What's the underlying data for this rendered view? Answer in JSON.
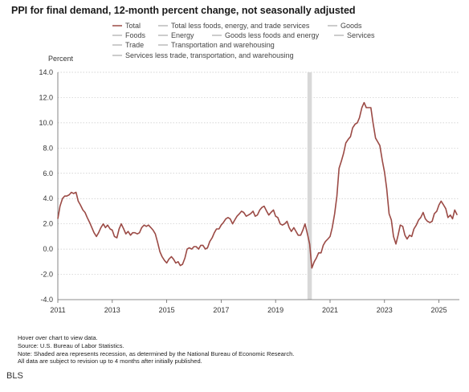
{
  "chart_data": {
    "type": "line",
    "title": "PPI for final demand, 12-month percent change, not seasonally adjusted",
    "ylabel": "Percent",
    "xlabel": "",
    "ylim": [
      -4.0,
      14.0
    ],
    "y_ticks": [
      "14.0",
      "12.0",
      "10.0",
      "8.0",
      "6.0",
      "4.0",
      "2.0",
      "0.0",
      "-2.0",
      "-4.0"
    ],
    "y_tick_values": [
      14,
      12,
      10,
      8,
      6,
      4,
      2,
      0,
      -2,
      -4
    ],
    "x_ticks": [
      "2011",
      "2013",
      "2015",
      "2017",
      "2019",
      "2021",
      "2023",
      "2025"
    ],
    "x_tick_values": [
      2011,
      2013,
      2015,
      2017,
      2019,
      2021,
      2023,
      2025
    ],
    "x_range": [
      2011.0,
      2025.75
    ],
    "grid": "horizontal dotted",
    "legend_position": "top",
    "legend": [
      {
        "label": "Total",
        "color": "#9b4a45",
        "active": true
      },
      {
        "label": "Total less foods, energy, and trade services",
        "color": "#bbbbbb",
        "active": false
      },
      {
        "label": "Goods",
        "color": "#bbbbbb",
        "active": false
      },
      {
        "label": "Foods",
        "color": "#bbbbbb",
        "active": false
      },
      {
        "label": "Energy",
        "color": "#bbbbbb",
        "active": false
      },
      {
        "label": "Goods less foods and energy",
        "color": "#bbbbbb",
        "active": false
      },
      {
        "label": "Services",
        "color": "#bbbbbb",
        "active": false
      },
      {
        "label": "Trade",
        "color": "#bbbbbb",
        "active": false
      },
      {
        "label": "Transportation and warehousing",
        "color": "#bbbbbb",
        "active": false
      },
      {
        "label": "Services less trade, transportation, and warehousing",
        "color": "#bbbbbb",
        "active": false
      }
    ],
    "recession": {
      "start": 2020.17,
      "end": 2020.33,
      "color": "#d8d8d8"
    },
    "series": [
      {
        "name": "Total",
        "color": "#9b4a45",
        "points": [
          [
            2011.0,
            2.4
          ],
          [
            2011.08,
            3.4
          ],
          [
            2011.17,
            4.0
          ],
          [
            2011.25,
            4.2
          ],
          [
            2011.33,
            4.2
          ],
          [
            2011.42,
            4.3
          ],
          [
            2011.5,
            4.5
          ],
          [
            2011.58,
            4.4
          ],
          [
            2011.67,
            4.5
          ],
          [
            2011.75,
            3.8
          ],
          [
            2011.83,
            3.5
          ],
          [
            2011.92,
            3.1
          ],
          [
            2012.0,
            2.9
          ],
          [
            2012.08,
            2.5
          ],
          [
            2012.17,
            2.1
          ],
          [
            2012.25,
            1.7
          ],
          [
            2012.33,
            1.3
          ],
          [
            2012.42,
            1.0
          ],
          [
            2012.5,
            1.3
          ],
          [
            2012.58,
            1.7
          ],
          [
            2012.67,
            2.0
          ],
          [
            2012.75,
            1.7
          ],
          [
            2012.83,
            1.9
          ],
          [
            2012.92,
            1.6
          ],
          [
            2013.0,
            1.5
          ],
          [
            2013.08,
            1.0
          ],
          [
            2013.17,
            0.9
          ],
          [
            2013.25,
            1.6
          ],
          [
            2013.33,
            2.0
          ],
          [
            2013.42,
            1.6
          ],
          [
            2013.5,
            1.2
          ],
          [
            2013.58,
            1.4
          ],
          [
            2013.67,
            1.1
          ],
          [
            2013.75,
            1.3
          ],
          [
            2013.83,
            1.3
          ],
          [
            2013.92,
            1.2
          ],
          [
            2014.0,
            1.3
          ],
          [
            2014.08,
            1.7
          ],
          [
            2014.17,
            1.9
          ],
          [
            2014.25,
            1.8
          ],
          [
            2014.33,
            1.9
          ],
          [
            2014.42,
            1.7
          ],
          [
            2014.5,
            1.5
          ],
          [
            2014.58,
            1.2
          ],
          [
            2014.67,
            0.5
          ],
          [
            2014.75,
            -0.2
          ],
          [
            2014.83,
            -0.6
          ],
          [
            2014.92,
            -0.9
          ],
          [
            2015.0,
            -1.1
          ],
          [
            2015.08,
            -0.8
          ],
          [
            2015.17,
            -0.6
          ],
          [
            2015.25,
            -0.8
          ],
          [
            2015.33,
            -1.1
          ],
          [
            2015.42,
            -1.0
          ],
          [
            2015.5,
            -1.3
          ],
          [
            2015.58,
            -1.2
          ],
          [
            2015.67,
            -0.7
          ],
          [
            2015.75,
            0.0
          ],
          [
            2015.83,
            0.1
          ],
          [
            2015.92,
            0.0
          ],
          [
            2016.0,
            0.2
          ],
          [
            2016.08,
            0.2
          ],
          [
            2016.17,
            0.0
          ],
          [
            2016.25,
            0.3
          ],
          [
            2016.33,
            0.3
          ],
          [
            2016.42,
            0.0
          ],
          [
            2016.5,
            0.1
          ],
          [
            2016.58,
            0.6
          ],
          [
            2016.67,
            0.9
          ],
          [
            2016.75,
            1.3
          ],
          [
            2016.83,
            1.6
          ],
          [
            2016.92,
            1.6
          ],
          [
            2017.0,
            1.9
          ],
          [
            2017.08,
            2.1
          ],
          [
            2017.17,
            2.4
          ],
          [
            2017.25,
            2.5
          ],
          [
            2017.33,
            2.4
          ],
          [
            2017.42,
            2.0
          ],
          [
            2017.5,
            2.3
          ],
          [
            2017.58,
            2.6
          ],
          [
            2017.67,
            2.8
          ],
          [
            2017.75,
            3.0
          ],
          [
            2017.83,
            2.9
          ],
          [
            2017.92,
            2.6
          ],
          [
            2018.0,
            2.7
          ],
          [
            2018.08,
            2.8
          ],
          [
            2018.17,
            3.0
          ],
          [
            2018.25,
            2.6
          ],
          [
            2018.33,
            2.7
          ],
          [
            2018.42,
            3.1
          ],
          [
            2018.5,
            3.3
          ],
          [
            2018.58,
            3.4
          ],
          [
            2018.67,
            3.0
          ],
          [
            2018.75,
            2.7
          ],
          [
            2018.83,
            2.9
          ],
          [
            2018.92,
            3.1
          ],
          [
            2019.0,
            2.6
          ],
          [
            2019.08,
            2.5
          ],
          [
            2019.17,
            2.0
          ],
          [
            2019.25,
            1.9
          ],
          [
            2019.33,
            2.0
          ],
          [
            2019.42,
            2.2
          ],
          [
            2019.5,
            1.7
          ],
          [
            2019.58,
            1.4
          ],
          [
            2019.67,
            1.7
          ],
          [
            2019.75,
            1.4
          ],
          [
            2019.83,
            1.1
          ],
          [
            2019.92,
            1.1
          ],
          [
            2020.0,
            1.5
          ],
          [
            2020.08,
            2.0
          ],
          [
            2020.17,
            1.2
          ],
          [
            2020.25,
            0.4
          ],
          [
            2020.33,
            -1.5
          ],
          [
            2020.42,
            -1.0
          ],
          [
            2020.5,
            -0.7
          ],
          [
            2020.58,
            -0.3
          ],
          [
            2020.67,
            -0.3
          ],
          [
            2020.75,
            0.3
          ],
          [
            2020.83,
            0.6
          ],
          [
            2020.92,
            0.8
          ],
          [
            2021.0,
            1.0
          ],
          [
            2021.08,
            1.7
          ],
          [
            2021.17,
            2.8
          ],
          [
            2021.25,
            4.2
          ],
          [
            2021.33,
            6.4
          ],
          [
            2021.42,
            7.0
          ],
          [
            2021.5,
            7.6
          ],
          [
            2021.58,
            8.4
          ],
          [
            2021.67,
            8.7
          ],
          [
            2021.75,
            8.9
          ],
          [
            2021.83,
            9.6
          ],
          [
            2021.92,
            9.9
          ],
          [
            2022.0,
            10.0
          ],
          [
            2022.08,
            10.4
          ],
          [
            2022.17,
            11.2
          ],
          [
            2022.25,
            11.6
          ],
          [
            2022.33,
            11.2
          ],
          [
            2022.42,
            11.2
          ],
          [
            2022.5,
            11.2
          ],
          [
            2022.58,
            10.0
          ],
          [
            2022.67,
            8.8
          ],
          [
            2022.75,
            8.5
          ],
          [
            2022.83,
            8.2
          ],
          [
            2022.92,
            7.0
          ],
          [
            2023.0,
            6.1
          ],
          [
            2023.08,
            4.8
          ],
          [
            2023.17,
            2.8
          ],
          [
            2023.25,
            2.3
          ],
          [
            2023.33,
            1.0
          ],
          [
            2023.42,
            0.4
          ],
          [
            2023.5,
            1.1
          ],
          [
            2023.58,
            1.9
          ],
          [
            2023.67,
            1.8
          ],
          [
            2023.75,
            1.1
          ],
          [
            2023.83,
            0.8
          ],
          [
            2023.92,
            1.1
          ],
          [
            2024.0,
            1.0
          ],
          [
            2024.08,
            1.6
          ],
          [
            2024.17,
            1.9
          ],
          [
            2024.25,
            2.3
          ],
          [
            2024.33,
            2.5
          ],
          [
            2024.42,
            2.9
          ],
          [
            2024.5,
            2.4
          ],
          [
            2024.58,
            2.2
          ],
          [
            2024.67,
            2.1
          ],
          [
            2024.75,
            2.2
          ],
          [
            2024.83,
            2.8
          ],
          [
            2024.92,
            3.0
          ],
          [
            2025.0,
            3.5
          ],
          [
            2025.08,
            3.8
          ],
          [
            2025.17,
            3.5
          ],
          [
            2025.25,
            3.2
          ],
          [
            2025.33,
            2.5
          ],
          [
            2025.42,
            2.7
          ],
          [
            2025.5,
            2.4
          ],
          [
            2025.58,
            3.1
          ],
          [
            2025.67,
            2.7
          ]
        ]
      }
    ]
  },
  "notes": [
    "Hover over chart to view data.",
    "Source: U.S. Bureau of Labor Statistics.",
    "Note: Shaded area represents recession, as determined by the National Bureau of Economic Research.",
    "All data are subject to revision up to 4 months after initially published."
  ],
  "source_logo": "BLS"
}
